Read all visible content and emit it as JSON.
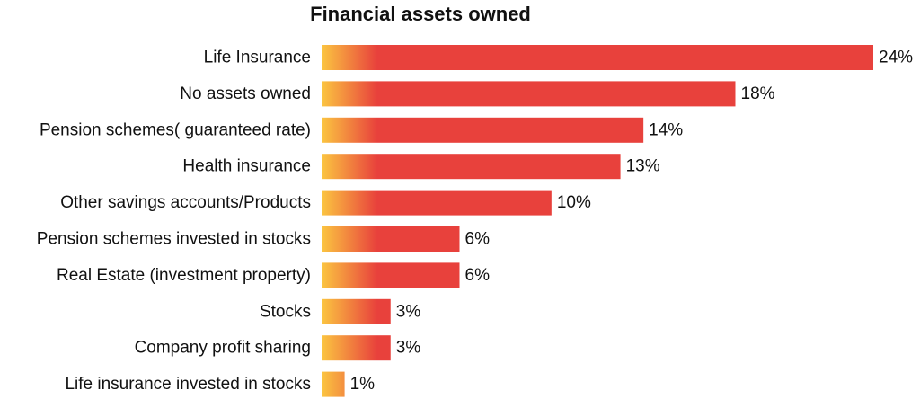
{
  "chart_data": {
    "type": "bar",
    "orientation": "horizontal",
    "title": "Financial assets owned",
    "xlabel": "",
    "ylabel": "",
    "categories": [
      "Life Insurance",
      "No assets owned",
      "Pension schemes( guaranteed rate)",
      "Health insurance",
      "Other savings accounts/Products",
      "Pension schemes invested in stocks",
      "Real Estate (investment property)",
      "Stocks",
      "Company profit sharing",
      "Life insurance invested in stocks"
    ],
    "values": [
      24,
      18,
      14,
      13,
      10,
      6,
      6,
      3,
      3,
      1
    ],
    "value_labels": [
      "24%",
      "18%",
      "14%",
      "13%",
      "10%",
      "6%",
      "6%",
      "3%",
      "3%",
      "1%"
    ],
    "xlim": [
      0,
      24
    ],
    "grid": false,
    "legend": "none",
    "colors": {
      "bar_main": "#e8413c",
      "bar_gradient_start": "#fbc541",
      "text": "#111111"
    }
  }
}
